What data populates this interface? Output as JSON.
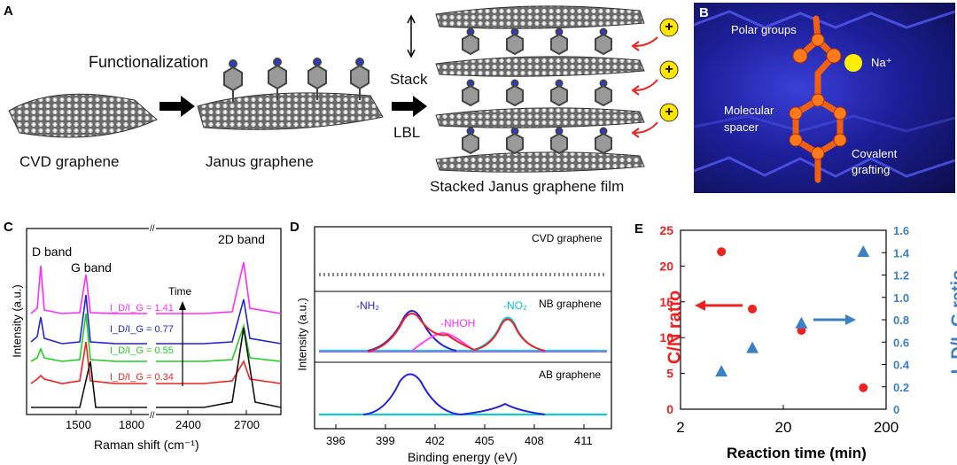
{
  "panelA": {
    "label": "A",
    "cvd_label": "CVD graphene",
    "janus_label": "Janus graphene",
    "functionalization": "Functionalization",
    "stack": "Stack",
    "lbl": "LBL",
    "stacked_label": "Stacked Janus graphene film",
    "cation_symbol": "+"
  },
  "panelB": {
    "label": "B",
    "polar_groups": "Polar groups",
    "na_ion": "Na⁺",
    "molecular_spacer": "Molecular spacer",
    "covalent_grafting": "Covalent grafting"
  },
  "panelC": {
    "label": "C",
    "d_band": "D band",
    "g_band": "G band",
    "twod_band": "2D band",
    "time": "Time",
    "ylabel": "Intensity (a.u.)",
    "xlabel": "Raman shift (cm⁻¹)",
    "ticks": [
      "1500",
      "1800",
      "2400",
      "2700"
    ],
    "ratios": [
      {
        "text": "I_D/I_G = 1.41",
        "color": "#ff2cff"
      },
      {
        "text": "I_D/I_G = 0.77",
        "color": "#2222dd"
      },
      {
        "text": "I_D/I_G = 0.55",
        "color": "#22cc22"
      },
      {
        "text": "I_D/I_G = 0.34",
        "color": "#ee2222"
      }
    ]
  },
  "panelD": {
    "label": "D",
    "cvd": "CVD graphene",
    "nb": "NB graphene",
    "ab": "AB graphene",
    "nh2": "-NH₂",
    "nhoh": "-NHOH",
    "no2": "-NO₂",
    "ylabel": "Intensity (a.u.)",
    "xlabel": "Binding energy (eV)",
    "ticks": [
      "396",
      "399",
      "402",
      "405",
      "408",
      "411"
    ]
  },
  "colors": {
    "cn": "#ee2222",
    "ratio": "#3b7fc4"
  },
  "chart_data": {
    "type": "scatter",
    "label": "E",
    "xlabel": "Reaction time (min)",
    "ylabel_left": "C/N ratio",
    "ylabel_right": "I_D/I_G ratio",
    "x_scale": "log",
    "xlim": [
      2,
      200
    ],
    "xticks": [
      "2",
      "20",
      "200"
    ],
    "left_ylim": [
      0,
      25
    ],
    "left_ticks": [
      "0",
      "5",
      "10",
      "15",
      "20",
      "25"
    ],
    "right_ylim": [
      0,
      1.6
    ],
    "right_ticks": [
      "0",
      "0.2",
      "0.4",
      "0.6",
      "0.8",
      "1.0",
      "1.2",
      "1.4",
      "1.6"
    ],
    "series": [
      {
        "name": "C/N ratio",
        "axis": "left",
        "marker": "circle",
        "x": [
          5,
          10,
          30,
          120
        ],
        "y": [
          22,
          14,
          11,
          3
        ]
      },
      {
        "name": "I_D/I_G ratio",
        "axis": "right",
        "marker": "triangle",
        "x": [
          5,
          10,
          30,
          120
        ],
        "y": [
          0.34,
          0.55,
          0.77,
          1.41
        ]
      }
    ]
  }
}
